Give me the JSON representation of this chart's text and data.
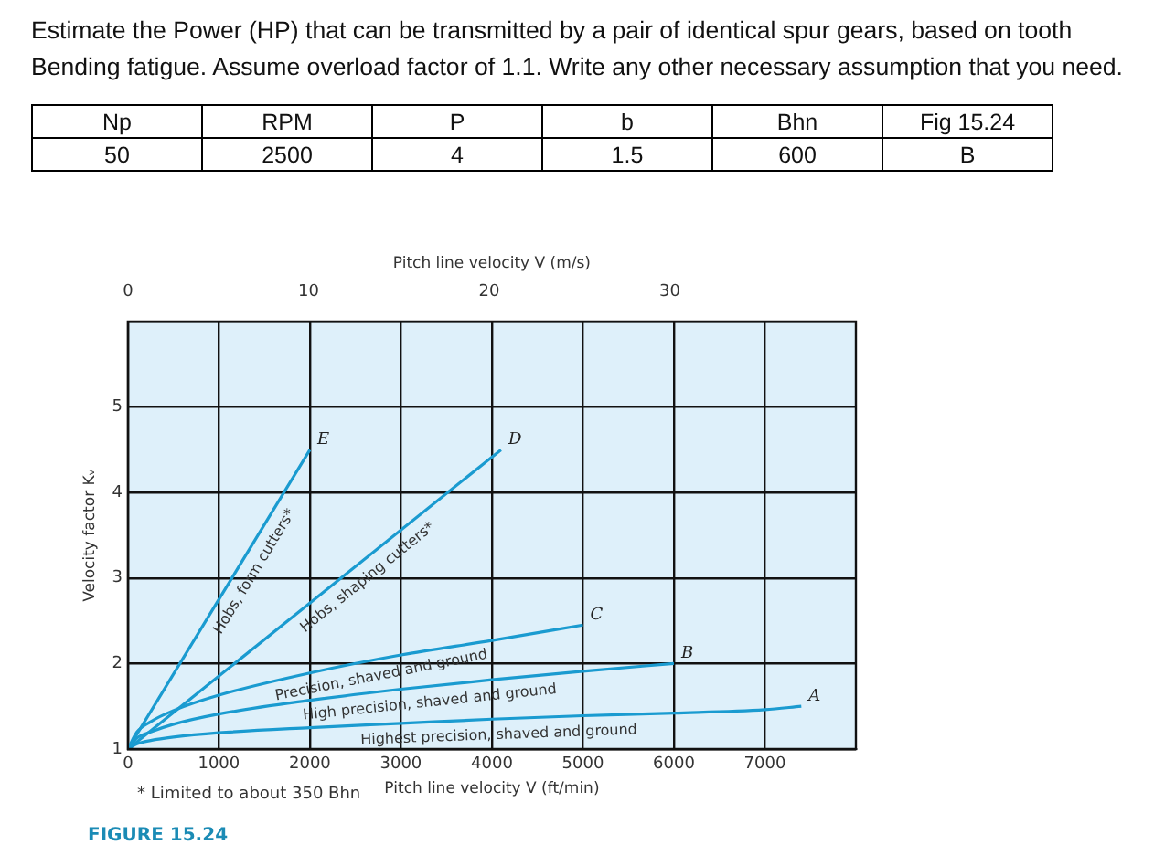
{
  "chart_data": {
    "type": "line",
    "title": "Estimate the Power (HP) that can be transmitted by a pair of identical spur gears, based on tooth Bending fatigue. Assume overload factor of 1.1. Write any other necessary assumption that you need.",
    "xlabel": "Pitch line velocity V (ft/min)",
    "x2label": "Pitch line velocity V (m/s)",
    "ylabel": "Velocity factor Kᵥ",
    "xlim": [
      0,
      8000
    ],
    "xticks": [
      0,
      1000,
      2000,
      3000,
      4000,
      5000,
      6000,
      7000
    ],
    "x2lim": [
      0,
      40.3
    ],
    "x2ticks": [
      0,
      10,
      20,
      30
    ],
    "ylim": [
      1,
      6
    ],
    "yticks": [
      1,
      2,
      3,
      4,
      5,
      {
        "value": 6,
        "label": null
      }
    ],
    "grid": true,
    "legend": false,
    "marker": "none",
    "line_style": "solid",
    "series": [
      {
        "name": "Hobs, form cutters*",
        "color": "#1a9bd0",
        "x": [
          0,
          2000
        ],
        "values": [
          1,
          4.5
        ]
      },
      {
        "name": "Hobs, shaping cutters*",
        "color": "#1a9bd0",
        "x": [
          0,
          4100
        ],
        "values": [
          1,
          4.5
        ]
      },
      {
        "name": "Precision, shaved and ground",
        "color": "#1a9bd0",
        "x": [
          0,
          100,
          250,
          500,
          1000,
          2000,
          3000,
          4000,
          5000
        ],
        "values": [
          1,
          1.2,
          1.32,
          1.45,
          1.63,
          1.89,
          2.1,
          2.27,
          2.45
        ]
      },
      {
        "name": "High precision, shaved and ground",
        "color": "#1a9bd0",
        "x": [
          0,
          100,
          250,
          500,
          1000,
          2000,
          3000,
          4000,
          5000,
          6000
        ],
        "values": [
          1,
          1.13,
          1.2,
          1.29,
          1.41,
          1.57,
          1.7,
          1.81,
          1.91,
          2.0
        ]
      },
      {
        "name": "Highest precision, shaved and ground",
        "color": "#1a9bd0",
        "x": [
          0,
          100,
          250,
          500,
          1000,
          2000,
          3000,
          4000,
          5000,
          6000,
          7000,
          7400
        ],
        "values": [
          1,
          1.06,
          1.1,
          1.14,
          1.19,
          1.25,
          1.3,
          1.35,
          1.39,
          1.42,
          1.46,
          1.5
        ]
      }
    ],
    "annotations": [
      "Np",
      "RPM",
      "P",
      "b",
      "Bhn",
      "Fig 15.24",
      "50",
      "2500",
      "4",
      "1.5",
      "600",
      "B",
      "* Limited to about 350 Bhn",
      "FIGURE 15.24",
      {
        "text": "E",
        "x": 2000,
        "y": 4.5
      },
      {
        "text": "D",
        "x": 4100,
        "y": 4.5
      },
      {
        "text": "C",
        "x": 5000,
        "y": 2.45
      },
      {
        "text": "B",
        "x": 6000,
        "y": 2.0
      },
      {
        "text": "A",
        "x": 7400,
        "y": 1.5
      }
    ]
  }
}
